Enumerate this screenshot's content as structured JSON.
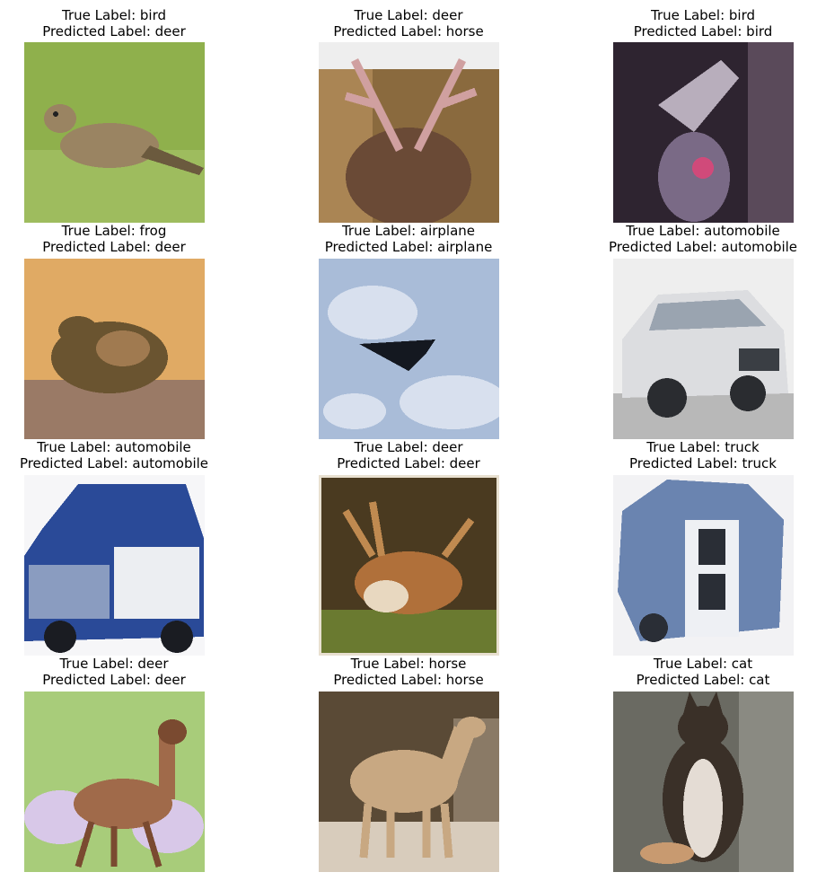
{
  "true_prefix": "True Label: ",
  "pred_prefix": "Predicted Label: ",
  "images": [
    {
      "true": "bird",
      "pred": "deer",
      "subject": "bird",
      "palette": {
        "bg": "#8fb04c",
        "bg2": "#a9c46a",
        "fg": "#9a8462",
        "fg2": "#6b5a3e"
      }
    },
    {
      "true": "deer",
      "pred": "horse",
      "subject": "deer-antlers",
      "palette": {
        "bg": "#8a6a3e",
        "bg2": "#c9a06a",
        "fg": "#6a4a36",
        "fg2": "#d0a0a0"
      }
    },
    {
      "true": "bird",
      "pred": "bird",
      "subject": "bird-dark",
      "palette": {
        "bg": "#2e2430",
        "bg2": "#5a4a5a",
        "fg": "#7a6a86",
        "fg2": "#d04a7a"
      }
    },
    {
      "true": "frog",
      "pred": "deer",
      "subject": "frog",
      "palette": {
        "bg": "#c9995a",
        "bg2": "#e0aa64",
        "fg": "#6a5430",
        "fg2": "#a07a50"
      }
    },
    {
      "true": "airplane",
      "pred": "airplane",
      "subject": "airplane",
      "palette": {
        "bg": "#a9bcd8",
        "bg2": "#d8e0ee",
        "fg": "#141820",
        "fg2": "#7a90b8"
      }
    },
    {
      "true": "automobile",
      "pred": "automobile",
      "subject": "car-white",
      "palette": {
        "bg": "#eeeeee",
        "bg2": "#b8b8b8",
        "fg": "#dcdde0",
        "fg2": "#3a3e44"
      }
    },
    {
      "true": "automobile",
      "pred": "automobile",
      "subject": "car-blue",
      "palette": {
        "bg": "#f6f6f8",
        "bg2": "#d0d4dc",
        "fg": "#2a4a98",
        "fg2": "#eceef2"
      }
    },
    {
      "true": "deer",
      "pred": "deer",
      "subject": "deer-forest",
      "palette": {
        "bg": "#4a3a20",
        "bg2": "#6a7a30",
        "fg": "#b0703a",
        "fg2": "#e8d8c0"
      }
    },
    {
      "true": "truck",
      "pred": "truck",
      "subject": "truck",
      "palette": {
        "bg": "#f2f2f4",
        "bg2": "#c8d0dc",
        "fg": "#6a84b0",
        "fg2": "#2a2e36"
      }
    },
    {
      "true": "deer",
      "pred": "deer",
      "subject": "deer-field",
      "palette": {
        "bg": "#a8cc7a",
        "bg2": "#d8c8e8",
        "fg": "#a06a4a",
        "fg2": "#7a4a30"
      }
    },
    {
      "true": "horse",
      "pred": "horse",
      "subject": "horse",
      "palette": {
        "bg": "#5a4a36",
        "bg2": "#d8ccbc",
        "fg": "#c8a882",
        "fg2": "#e8dccc"
      }
    },
    {
      "true": "cat",
      "pred": "cat",
      "subject": "cat",
      "palette": {
        "bg": "#6a6a62",
        "bg2": "#a0a098",
        "fg": "#3a3028",
        "fg2": "#e4dcd4"
      }
    }
  ]
}
